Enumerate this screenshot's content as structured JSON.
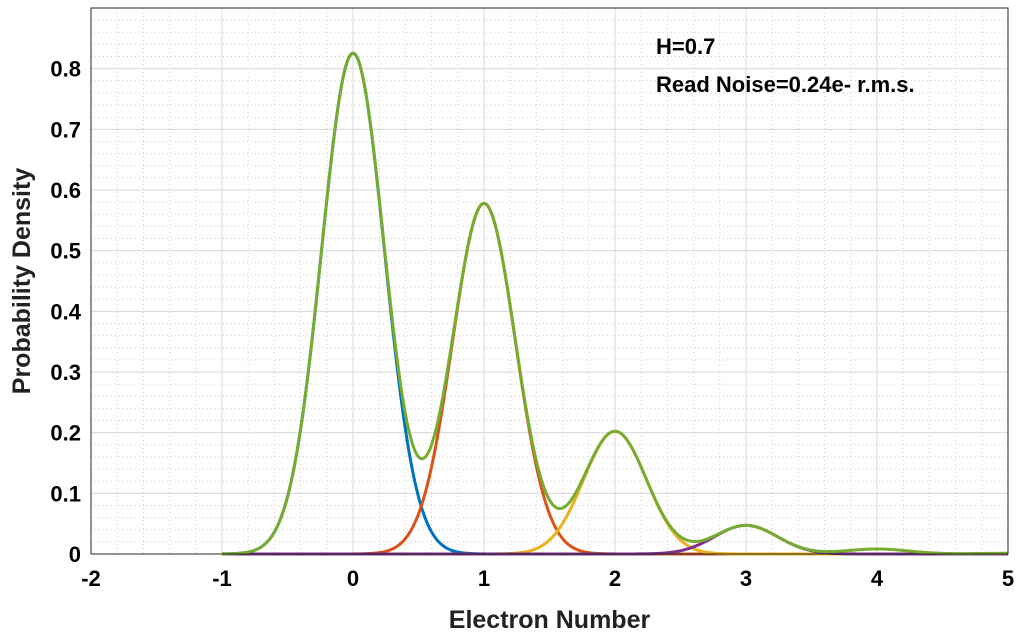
{
  "chart_data": {
    "type": "line",
    "xlabel": "Electron Number",
    "ylabel": "Probability Density",
    "xlim": [
      -2,
      5
    ],
    "ylim": [
      0,
      0.9
    ],
    "xticks": [
      -2,
      -1,
      0,
      1,
      2,
      3,
      4,
      5
    ],
    "yticks": [
      0,
      0.1,
      0.2,
      0.3,
      0.4,
      0.5,
      0.6,
      0.7,
      0.8
    ],
    "grid": true,
    "minor_grid": true,
    "annotations": [
      "H=0.7",
      "Read Noise=0.24e- r.m.s."
    ],
    "model": {
      "H": 0.7,
      "read_noise": 0.24,
      "x_start": -1,
      "x_end": 5
    },
    "series": [
      {
        "k": 0,
        "color": "#0072BD",
        "peak_y": 0.824
      },
      {
        "k": 1,
        "color": "#D95319",
        "peak_y": 0.577
      },
      {
        "k": 2,
        "color": "#EDB120",
        "peak_y": 0.202
      },
      {
        "k": 3,
        "color": "#7E2F8E",
        "peak_y": 0.047
      },
      {
        "k": "total",
        "color": "#77AC30",
        "peak_y": 0.824
      }
    ]
  }
}
